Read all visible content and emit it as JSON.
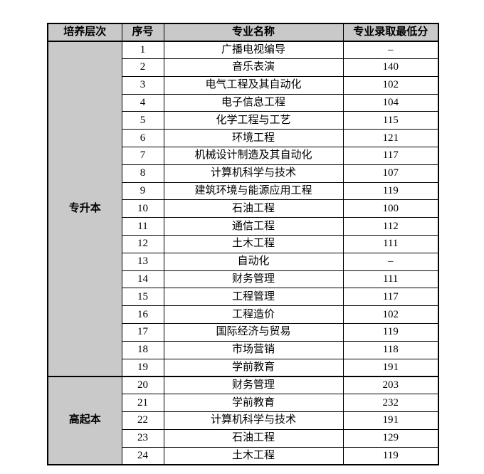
{
  "colors": {
    "header_bg": "#c9c9c9",
    "border": "#000000",
    "page_bg": "#ffffff"
  },
  "table": {
    "headers": [
      "培养层次",
      "序号",
      "专业名称",
      "专业录取最低分"
    ],
    "sections": [
      {
        "level": "专升本",
        "rows": [
          {
            "no": "1",
            "major": "广播电视编导",
            "score": "–"
          },
          {
            "no": "2",
            "major": "音乐表演",
            "score": "140"
          },
          {
            "no": "3",
            "major": "电气工程及其自动化",
            "score": "102"
          },
          {
            "no": "4",
            "major": "电子信息工程",
            "score": "104"
          },
          {
            "no": "5",
            "major": "化学工程与工艺",
            "score": "115"
          },
          {
            "no": "6",
            "major": "环境工程",
            "score": "121"
          },
          {
            "no": "7",
            "major": "机械设计制造及其自动化",
            "score": "117"
          },
          {
            "no": "8",
            "major": "计算机科学与技术",
            "score": "107"
          },
          {
            "no": "9",
            "major": "建筑环境与能源应用工程",
            "score": "119"
          },
          {
            "no": "10",
            "major": "石油工程",
            "score": "100"
          },
          {
            "no": "11",
            "major": "通信工程",
            "score": "112"
          },
          {
            "no": "12",
            "major": "土木工程",
            "score": "111"
          },
          {
            "no": "13",
            "major": "自动化",
            "score": "–"
          },
          {
            "no": "14",
            "major": "财务管理",
            "score": "111"
          },
          {
            "no": "15",
            "major": "工程管理",
            "score": "117"
          },
          {
            "no": "16",
            "major": "工程造价",
            "score": "102"
          },
          {
            "no": "17",
            "major": "国际经济与贸易",
            "score": "119"
          },
          {
            "no": "18",
            "major": "市场营销",
            "score": "118"
          },
          {
            "no": "19",
            "major": "学前教育",
            "score": "191"
          }
        ]
      },
      {
        "level": "高起本",
        "rows": [
          {
            "no": "20",
            "major": "财务管理",
            "score": "203"
          },
          {
            "no": "21",
            "major": "学前教育",
            "score": "232"
          },
          {
            "no": "22",
            "major": "计算机科学与技术",
            "score": "191"
          },
          {
            "no": "23",
            "major": "石油工程",
            "score": "129"
          },
          {
            "no": "24",
            "major": "土木工程",
            "score": "119"
          }
        ]
      }
    ]
  }
}
